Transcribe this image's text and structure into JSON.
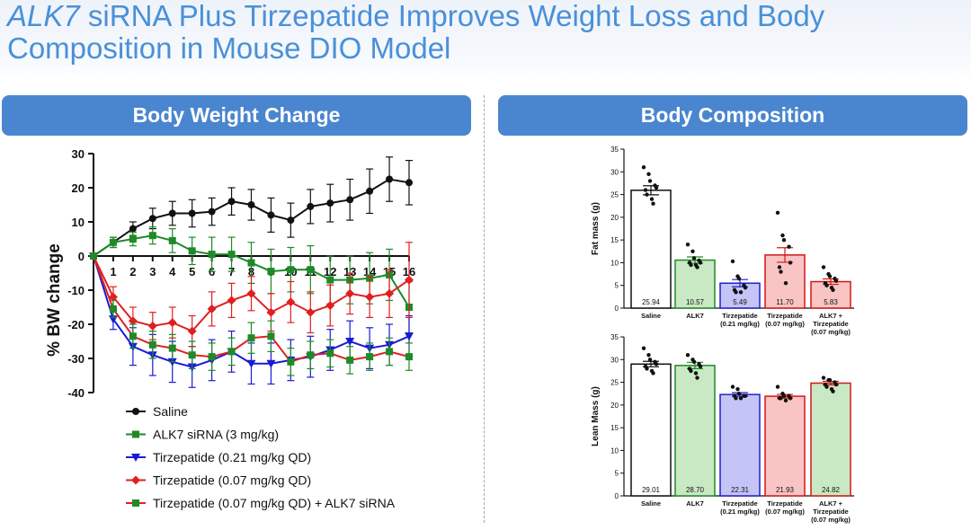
{
  "slide": {
    "title_italic": "ALK7",
    "title_rest": " siRNA Plus Tirzepatide Improves Weight Loss and Body Composition in Mouse DIO Model"
  },
  "panels": {
    "left_header": "Body Weight Change",
    "right_header": "Body Composition"
  },
  "chart_data": [
    {
      "type": "line",
      "ylabel": "% BW change",
      "xlabel": "",
      "x": [
        0,
        1,
        2,
        3,
        4,
        5,
        6,
        7,
        8,
        9,
        10,
        11,
        12,
        13,
        14,
        15,
        16
      ],
      "x_tick_labels": [
        "1",
        "2",
        "3",
        "4",
        "5",
        "6",
        "7",
        "8",
        "9",
        "10",
        "11",
        "12",
        "13",
        "14",
        "15",
        "16"
      ],
      "ylim": [
        -40,
        30
      ],
      "y_ticks": [
        30,
        20,
        10,
        0,
        -10,
        -20,
        -30,
        -40
      ],
      "legend_position": "bottom",
      "series": [
        {
          "name": "Saline",
          "color": "#111111",
          "marker": "circle",
          "values": [
            0,
            4,
            8,
            11,
            12.5,
            12.5,
            13,
            16,
            15,
            12,
            10.5,
            14.5,
            15.5,
            16.5,
            19,
            22.5,
            21.5
          ],
          "error": [
            0,
            1.5,
            2,
            3,
            3.5,
            4,
            4,
            4,
            4.5,
            5,
            5,
            5,
            5.5,
            6,
            6.5,
            6.5,
            6.5
          ]
        },
        {
          "name": "ALK7 siRNA (3 mg/kg)",
          "color": "#1e8a28",
          "marker": "square",
          "values": [
            0,
            4,
            5,
            6,
            4.5,
            1.5,
            0.5,
            0.5,
            -2,
            -4.5,
            -4,
            -4,
            -7,
            -7,
            -6.5,
            -5.5,
            -15
          ],
          "error": [
            0,
            1.5,
            2,
            2.5,
            3.5,
            4,
            5,
            5,
            6,
            6.5,
            6.5,
            7,
            7,
            7,
            7.5,
            7.5,
            7.5
          ]
        },
        {
          "name": "Tirzepatide (0.21 mg/kg QD)",
          "color": "#1a1ad6",
          "marker": "triangle-down",
          "values": [
            0,
            -18.5,
            -26.5,
            -29,
            -31,
            -32.5,
            -30.5,
            -28,
            -31.5,
            -31.5,
            -30.5,
            -29.5,
            -27.5,
            -25,
            -27,
            -26,
            -23.5
          ],
          "error": [
            0,
            3,
            5.5,
            6,
            6,
            6,
            6,
            6,
            6,
            6,
            6,
            6,
            6,
            6,
            6,
            6,
            6
          ]
        },
        {
          "name": "Tirzepatide (0.07 mg/kg QD)",
          "color": "#e02020",
          "marker": "diamond",
          "values": [
            0,
            -12,
            -19,
            -20.5,
            -19.5,
            -22,
            -15.5,
            -13,
            -11,
            -16.5,
            -13.5,
            -16.5,
            -14.5,
            -11,
            -12,
            -11,
            -7
          ],
          "error": [
            0,
            3,
            4,
            4,
            4.5,
            4.5,
            5,
            5,
            5,
            5.5,
            6,
            6,
            6,
            6,
            6,
            7,
            11
          ]
        },
        {
          "name": "Tirzepatide (0.07 mg/kg QD) + ALK7 siRNA",
          "color": "#1e8a28",
          "marker": "square-red-line",
          "line_color": "#e02020",
          "values": [
            0,
            -15.5,
            -23.5,
            -26,
            -27,
            -29,
            -29.5,
            -28,
            -24,
            -23.5,
            -31,
            -29,
            -28.5,
            -30.5,
            -29.5,
            -28,
            -29.5
          ],
          "error": [
            0,
            2.5,
            3.5,
            4,
            4,
            4,
            4,
            4,
            4.5,
            4.5,
            4,
            4,
            4,
            4,
            4,
            4,
            4
          ]
        }
      ]
    },
    {
      "type": "bar",
      "ylabel": "Fat mass (g)",
      "xlabel": "",
      "ylim": [
        0,
        35
      ],
      "y_ticks": [
        0,
        5,
        10,
        15,
        20,
        25,
        30,
        35
      ],
      "categories": [
        "Saline",
        "ALK7",
        "Tirzepatide\n(0.21 mg/kg)",
        "Tirzepatide\n(0.07 mg/kg)",
        "ALK7 +\nTirzepatide\n(0.07 mg/kg)"
      ],
      "values": [
        25.94,
        10.57,
        5.49,
        11.7,
        5.83
      ],
      "value_labels": [
        "25.94",
        "10.57",
        "5.49",
        "11.70",
        "5.83"
      ],
      "sem": [
        1.0,
        0.7,
        0.8,
        1.6,
        0.6
      ],
      "fill_colors": [
        "#ffffff",
        "#c9e8c4",
        "#c4c4f7",
        "#f9c4c4",
        "#f9c4c4"
      ],
      "edge_colors": [
        "#111111",
        "#1e8a28",
        "#2020cc",
        "#d01818",
        "#d01818"
      ],
      "points": [
        [
          31,
          29.5,
          28,
          27,
          26.5,
          26,
          25,
          24,
          23
        ],
        [
          14,
          12.5,
          11,
          10.5,
          10,
          10,
          9.5,
          9.5,
          9
        ],
        [
          10.3,
          7,
          6.5,
          5,
          4.5,
          4,
          3.5,
          3.5
        ],
        [
          21,
          16,
          15,
          13.5,
          10,
          9,
          8,
          5.5
        ],
        [
          9,
          7.5,
          7,
          6.5,
          6,
          5.5,
          5,
          4.5,
          4
        ]
      ]
    },
    {
      "type": "bar",
      "ylabel": "Lean Mass (g)",
      "xlabel": "",
      "ylim": [
        0,
        35
      ],
      "y_ticks": [
        0,
        5,
        10,
        15,
        20,
        25,
        30,
        35
      ],
      "categories": [
        "Saline",
        "ALK7",
        "Tirzepatide\n(0.21 mg/kg)",
        "Tirzepatide\n(0.07 mg/kg)",
        "ALK7 +\nTirzepatide\n(0.07 mg/kg)"
      ],
      "values": [
        29.01,
        28.7,
        22.31,
        21.93,
        24.82
      ],
      "value_labels": [
        "29.01",
        "28.70",
        "22.31",
        "21.93",
        "24.82"
      ],
      "sem": [
        0.6,
        0.7,
        0.4,
        0.4,
        0.4
      ],
      "fill_colors": [
        "#ffffff",
        "#c9e8c4",
        "#c4c4f7",
        "#f9c4c4",
        "#c9e8c4"
      ],
      "edge_colors": [
        "#111111",
        "#1e8a28",
        "#2020cc",
        "#d01818",
        "#d01818"
      ],
      "points": [
        [
          32.5,
          31,
          30,
          29.5,
          29,
          28.5,
          28,
          27.5,
          27
        ],
        [
          31,
          30,
          29.5,
          29,
          28.5,
          28,
          27.5,
          27,
          26
        ],
        [
          24,
          23.5,
          22.5,
          22,
          22,
          22,
          21.5,
          21.5
        ],
        [
          24,
          22.5,
          22,
          22,
          21.5,
          21.5,
          21.5,
          21
        ],
        [
          26,
          25.5,
          25.5,
          25,
          24.5,
          24.5,
          24,
          23.5,
          23
        ]
      ]
    }
  ]
}
